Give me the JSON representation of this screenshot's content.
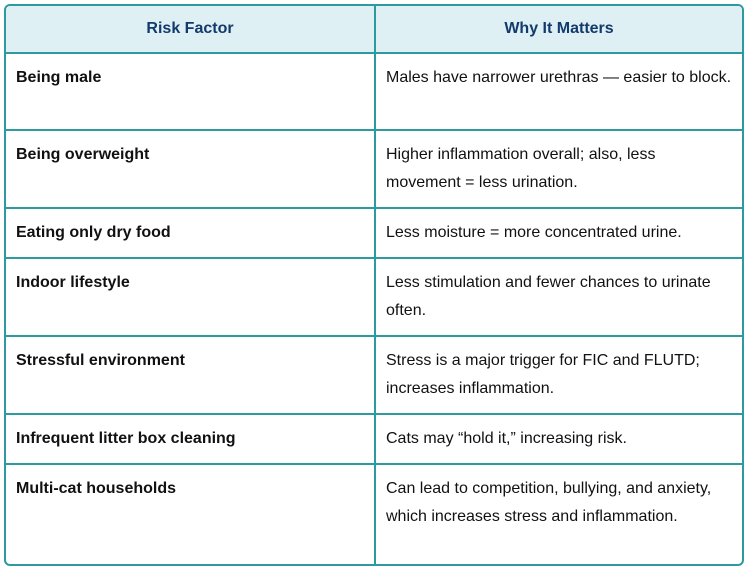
{
  "table": {
    "headers": [
      "Risk Factor",
      "Why It Matters"
    ],
    "rows": [
      {
        "factor": "Being male",
        "why": "Males have narrower urethras — easier to block."
      },
      {
        "factor": "Being overweight",
        "why": "Higher inflammation overall; also, less movement = less urination."
      },
      {
        "factor": "Eating only dry food",
        "why": "Less moisture = more concentrated urine."
      },
      {
        "factor": "Indoor lifestyle",
        "why": "Less stimulation and fewer chances to urinate often."
      },
      {
        "factor": "Stressful environment",
        "why": "Stress is a major trigger for FIC and FLUTD; increases inflammation."
      },
      {
        "factor": "Infrequent litter box cleaning",
        "why": "Cats may “hold it,” increasing risk."
      },
      {
        "factor": "Multi-cat households",
        "why": "Can lead to competition, bullying, and anxiety, which increases stress and inflammation."
      }
    ]
  },
  "colors": {
    "border": "#2d9aa0",
    "header_bg": "#dff0f5",
    "header_text": "#123a6b"
  }
}
